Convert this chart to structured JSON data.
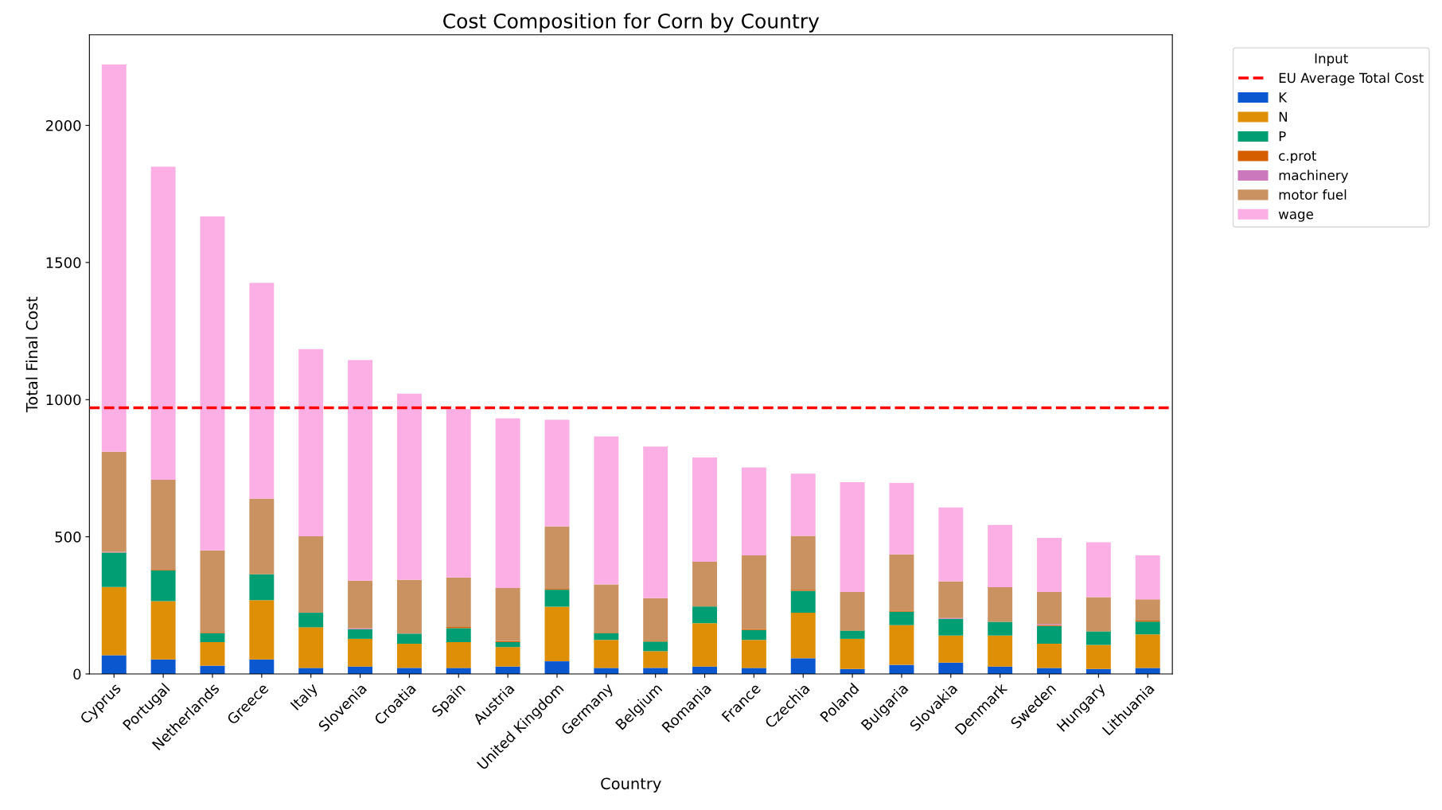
{
  "chart_data": {
    "type": "bar",
    "stacked": true,
    "title": "Cost Composition for Corn by Country",
    "xlabel": "Country",
    "ylabel": "Total Final Cost",
    "legend_title": "Input",
    "legend": "top right",
    "grid": false,
    "categories": [
      "Cyprus",
      "Portugal",
      "Netherlands",
      "Greece",
      "Italy",
      "Slovenia",
      "Croatia",
      "Spain",
      "Austria",
      "United Kingdom",
      "Germany",
      "Belgium",
      "Romania",
      "France",
      "Czechia",
      "Poland",
      "Bulgaria",
      "Slovakia",
      "Denmark",
      "Sweden",
      "Hungary",
      "Lithuania"
    ],
    "ylim": [
      0,
      2330
    ],
    "yticks": [
      0,
      500,
      1000,
      1500,
      2000
    ],
    "ref_lines": [
      {
        "axis": "y",
        "value": 970,
        "label": "EU Average Total Cost",
        "color": "#ff0000",
        "line_style": "dashed"
      }
    ],
    "series": [
      {
        "name": "K",
        "color": "#0b57d0",
        "values": [
          68,
          53,
          30,
          53,
          22,
          27,
          22,
          22,
          27,
          46,
          22,
          22,
          27,
          22,
          57,
          18,
          33,
          41,
          27,
          22,
          18,
          22
        ]
      },
      {
        "name": "N",
        "color": "#de8f05",
        "values": [
          249,
          212,
          86,
          216,
          148,
          101,
          88,
          94,
          71,
          199,
          102,
          61,
          158,
          102,
          166,
          110,
          145,
          99,
          113,
          88,
          88,
          122
        ]
      },
      {
        "name": "P",
        "color": "#029e73",
        "values": [
          125,
          113,
          33,
          94,
          53,
          35,
          37,
          51,
          18,
          62,
          25,
          35,
          61,
          36,
          80,
          30,
          49,
          61,
          50,
          65,
          49,
          47
        ]
      },
      {
        "name": "c.prot",
        "color": "#d55e00",
        "values": [
          1,
          2,
          4,
          1,
          null,
          0,
          null,
          4,
          4,
          3,
          2,
          3,
          null,
          4,
          4,
          1,
          4,
          0,
          0,
          3,
          1,
          3
        ]
      },
      {
        "name": "machinery",
        "color": "#cc78bc",
        "values": [
          2,
          0,
          0,
          0,
          0,
          3,
          0,
          0,
          0,
          0,
          0,
          0,
          0,
          0,
          0,
          0,
          0,
          3,
          null,
          4,
          0,
          0
        ]
      },
      {
        "name": "motor fuel",
        "color": "#ca9161",
        "values": [
          365,
          328,
          297,
          275,
          279,
          174,
          196,
          181,
          193,
          228,
          175,
          155,
          163,
          268,
          196,
          140,
          205,
          133,
          126,
          117,
          124,
          78
        ]
      },
      {
        "name": "wage",
        "color": "#fbafe4",
        "values": [
          1412,
          1141,
          1218,
          787,
          682,
          804,
          679,
          613,
          619,
          389,
          540,
          553,
          380,
          321,
          227,
          400,
          260,
          270,
          227,
          197,
          200,
          160
        ]
      }
    ]
  }
}
